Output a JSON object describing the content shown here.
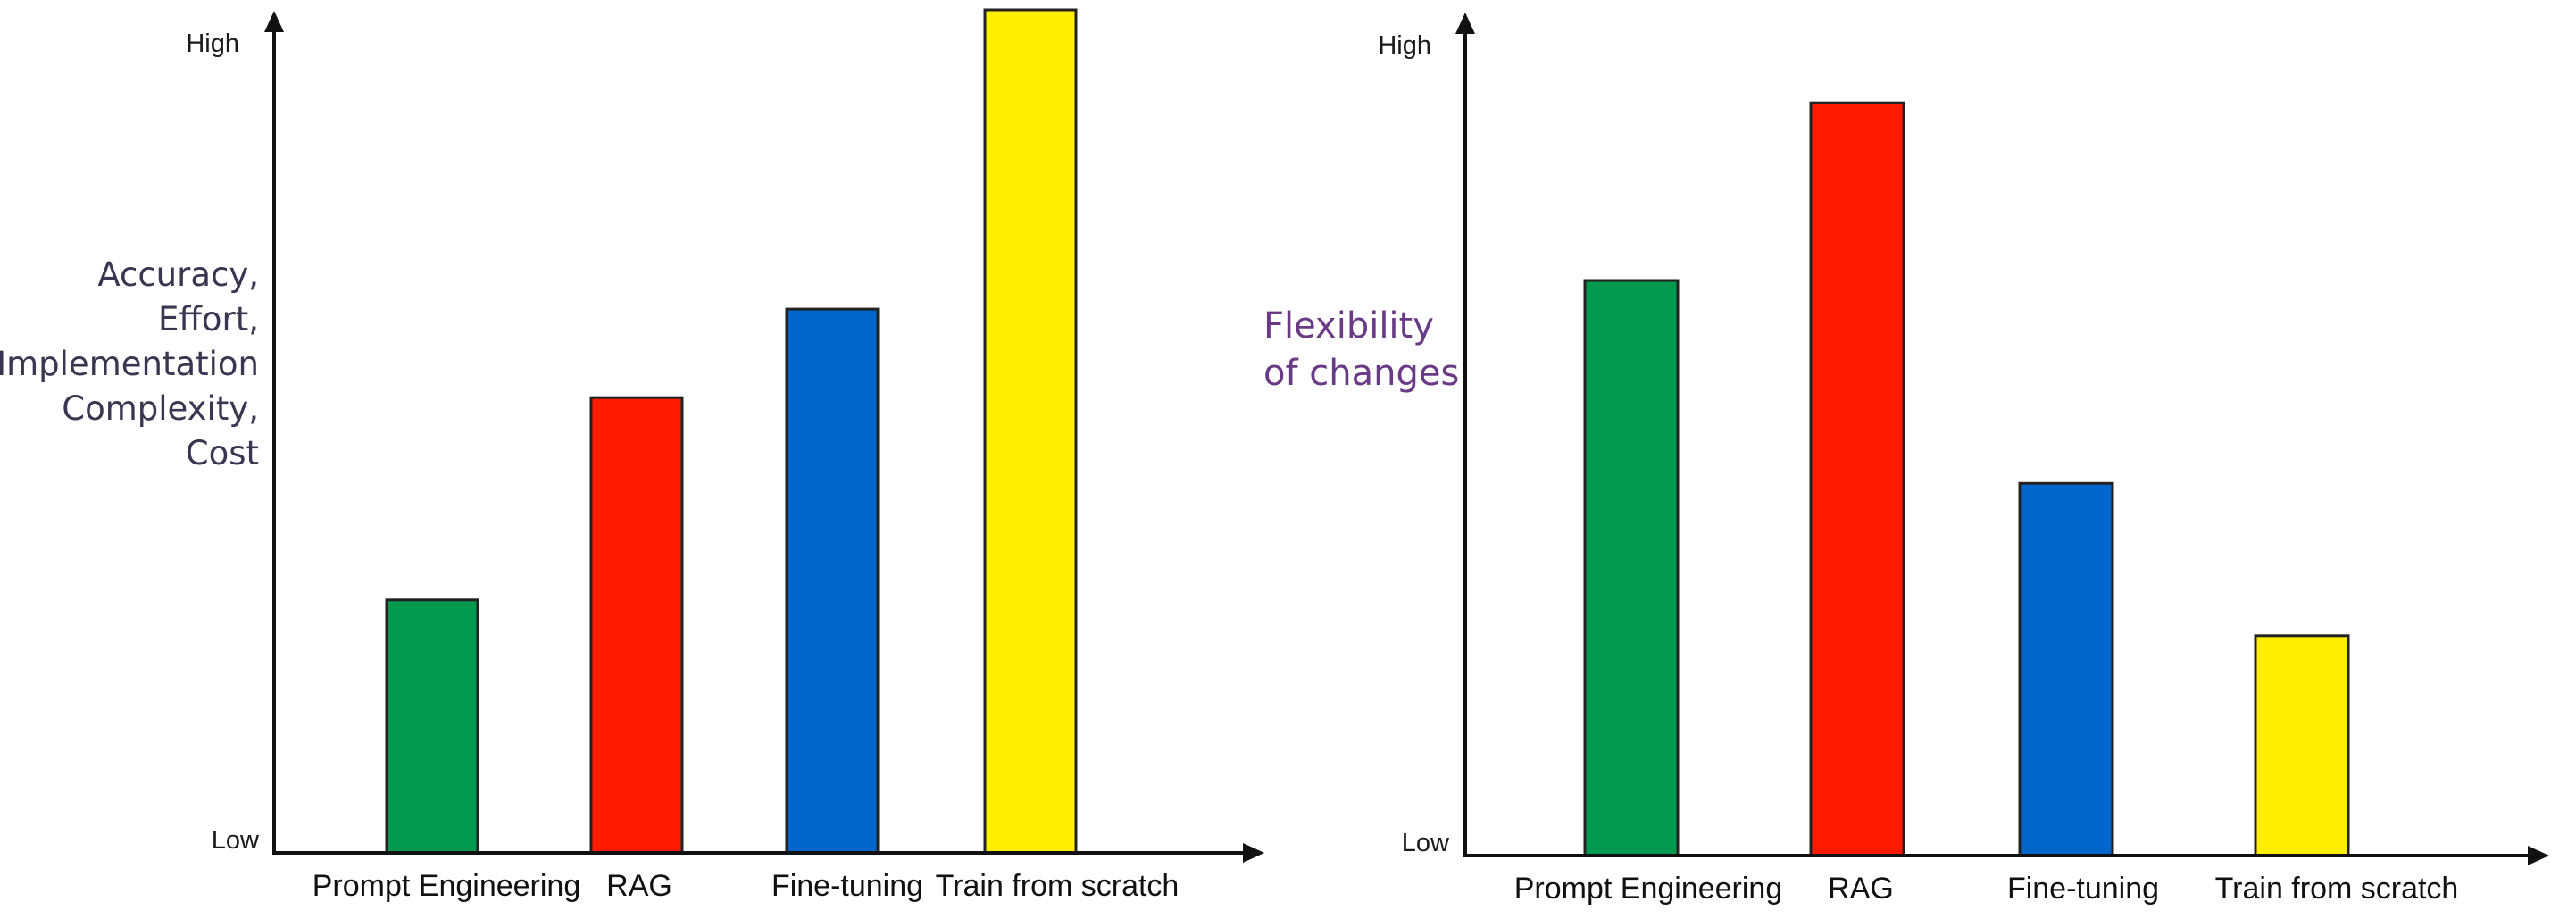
{
  "chart_data": [
    {
      "type": "bar",
      "categories": [
        "Prompt Engineering",
        "RAG",
        "Fine-tuning",
        "Train from scratch"
      ],
      "values": [
        30,
        54,
        64.5,
        100
      ],
      "ylim": [
        0,
        100
      ],
      "y_tick_labels": [
        "Low",
        "High"
      ],
      "ylabel_lines": [
        "Accuracy,",
        "Effort,",
        "Implementation",
        "Complexity,",
        "Cost"
      ],
      "xlabel": "",
      "title": "",
      "grid": false,
      "legend": "none",
      "colors": [
        "#00994d",
        "#ff1a00",
        "#0066cc",
        "#ffee00"
      ]
    },
    {
      "type": "bar",
      "categories": [
        "Prompt Engineering",
        "RAG",
        "Fine-tuning",
        "Train from scratch"
      ],
      "values": [
        68,
        89,
        44,
        26
      ],
      "ylim": [
        0,
        100
      ],
      "y_tick_labels": [
        "Low",
        "High"
      ],
      "ylabel_lines": [
        "Flexibility",
        "of changes"
      ],
      "xlabel": "",
      "title": "",
      "grid": false,
      "legend": "none",
      "colors": [
        "#00994d",
        "#ff1a00",
        "#0066cc",
        "#ffee00"
      ]
    }
  ]
}
